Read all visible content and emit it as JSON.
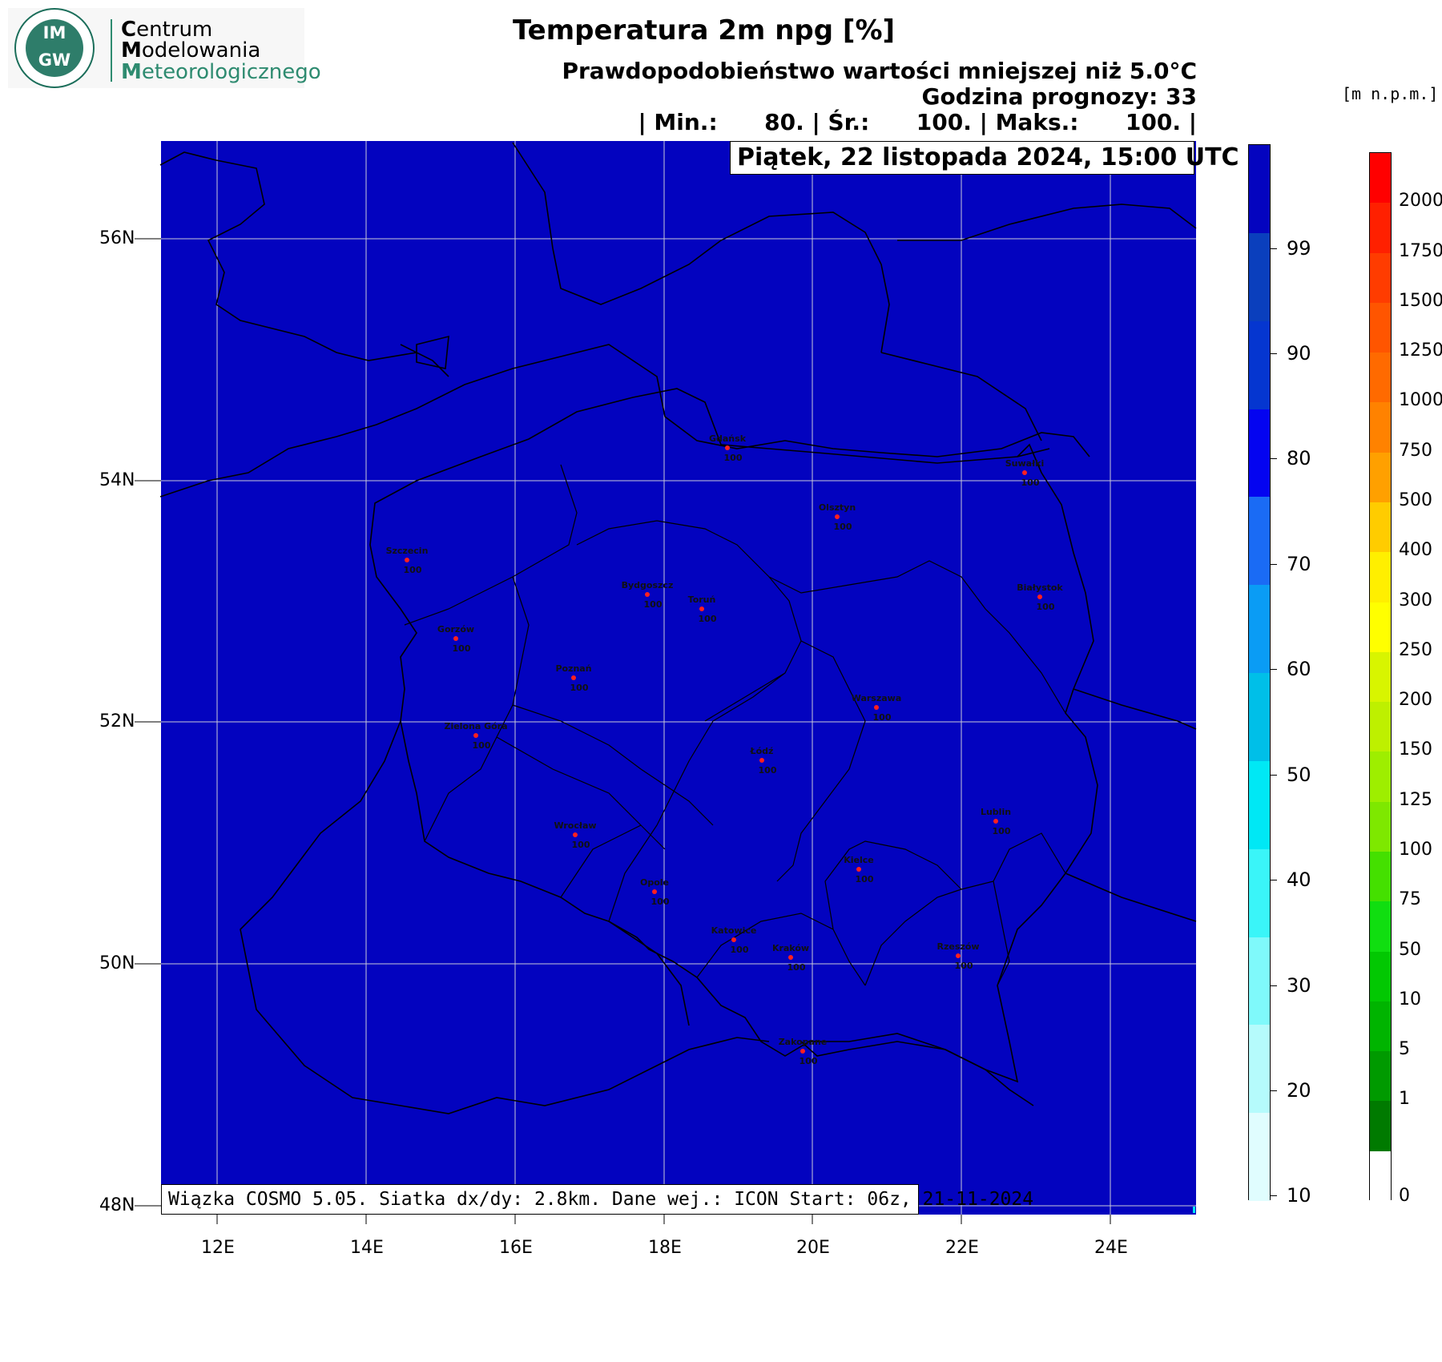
{
  "org": {
    "logo_text_top": "IM",
    "logo_text_bottom": "GW",
    "name_cap1": "C",
    "name_rest1": "entrum",
    "name_cap2": "M",
    "name_rest2": "odelowania",
    "name_cap3": "M",
    "name_rest3": "eteorologicznego",
    "brand_color": "#2e7d6a"
  },
  "header": {
    "title": "Temperatura 2m npg [%]",
    "subtitle": "Prawdopodobieństwo wartości mniejszej niż 5.0°C",
    "forecast_hour": "Godzina prognozy: 33",
    "stats": "| Min.:      80. | Śr.:      100. | Maks.:      100. |",
    "date": "Piątek, 22 listopada 2024, 15:00 UTC"
  },
  "footer": {
    "text": "Wiązka COSMO 5.05. Siatka dx/dy: 2.8km. Dane wej.: ICON Start: 06z, 21-11-2024"
  },
  "map": {
    "fill_color": "#0303bf",
    "lon_labels": [
      "12E",
      "14E",
      "16E",
      "18E",
      "20E",
      "22E",
      "24E"
    ],
    "lat_labels": [
      "56N",
      "54N",
      "52N",
      "50N",
      "48N"
    ],
    "cities": [
      {
        "name": "Gdańsk",
        "value": "100"
      },
      {
        "name": "Suwałki",
        "value": "100"
      },
      {
        "name": "Olsztyn",
        "value": "100"
      },
      {
        "name": "Szczecin",
        "value": "100"
      },
      {
        "name": "Bydgoszcz",
        "value": "100"
      },
      {
        "name": "Toruń",
        "value": "100"
      },
      {
        "name": "Białystok",
        "value": "100"
      },
      {
        "name": "Gorzów",
        "value": "100"
      },
      {
        "name": "Poznań",
        "value": "100"
      },
      {
        "name": "Warszawa",
        "value": "100"
      },
      {
        "name": "Zielona Góra",
        "value": "100"
      },
      {
        "name": "Łódź",
        "value": "100"
      },
      {
        "name": "Lublin",
        "value": "100"
      },
      {
        "name": "Wrocław",
        "value": "100"
      },
      {
        "name": "Kielce",
        "value": "100"
      },
      {
        "name": "Opole",
        "value": "100"
      },
      {
        "name": "Katowice",
        "value": "100"
      },
      {
        "name": "Kraków",
        "value": "100"
      },
      {
        "name": "Rzeszów",
        "value": "100"
      },
      {
        "name": "Zakopane",
        "value": "100"
      }
    ]
  },
  "prob_scale": {
    "labels": [
      "99",
      "90",
      "80",
      "70",
      "60",
      "50",
      "40",
      "30",
      "20",
      "10"
    ],
    "colors": [
      "#0404bf",
      "#0a3fbd",
      "#0536d0",
      "#0404f0",
      "#1a6bf5",
      "#0a9cf5",
      "#00bfe8",
      "#00e8f5",
      "#3af5f8",
      "#7ff9fb",
      "#b5fbfc",
      "#e0fdfe"
    ]
  },
  "height_scale": {
    "unit": "[m n.p.m.]",
    "labels": [
      "2000",
      "1750",
      "1500",
      "1250",
      "1000",
      "750",
      "500",
      "400",
      "300",
      "250",
      "200",
      "150",
      "125",
      "100",
      "75",
      "50",
      "10",
      "5",
      "1",
      "0"
    ],
    "colors": [
      "#ff0000",
      "#ff2000",
      "#ff3c00",
      "#ff5500",
      "#ff6a00",
      "#ff8200",
      "#ffa000",
      "#ffcc00",
      "#ffef00",
      "#ffff00",
      "#d8f500",
      "#bef000",
      "#9eee00",
      "#7ee800",
      "#44e000",
      "#10de10",
      "#02c802",
      "#00b400",
      "#009a00",
      "#007a00",
      "#ffffff"
    ]
  }
}
